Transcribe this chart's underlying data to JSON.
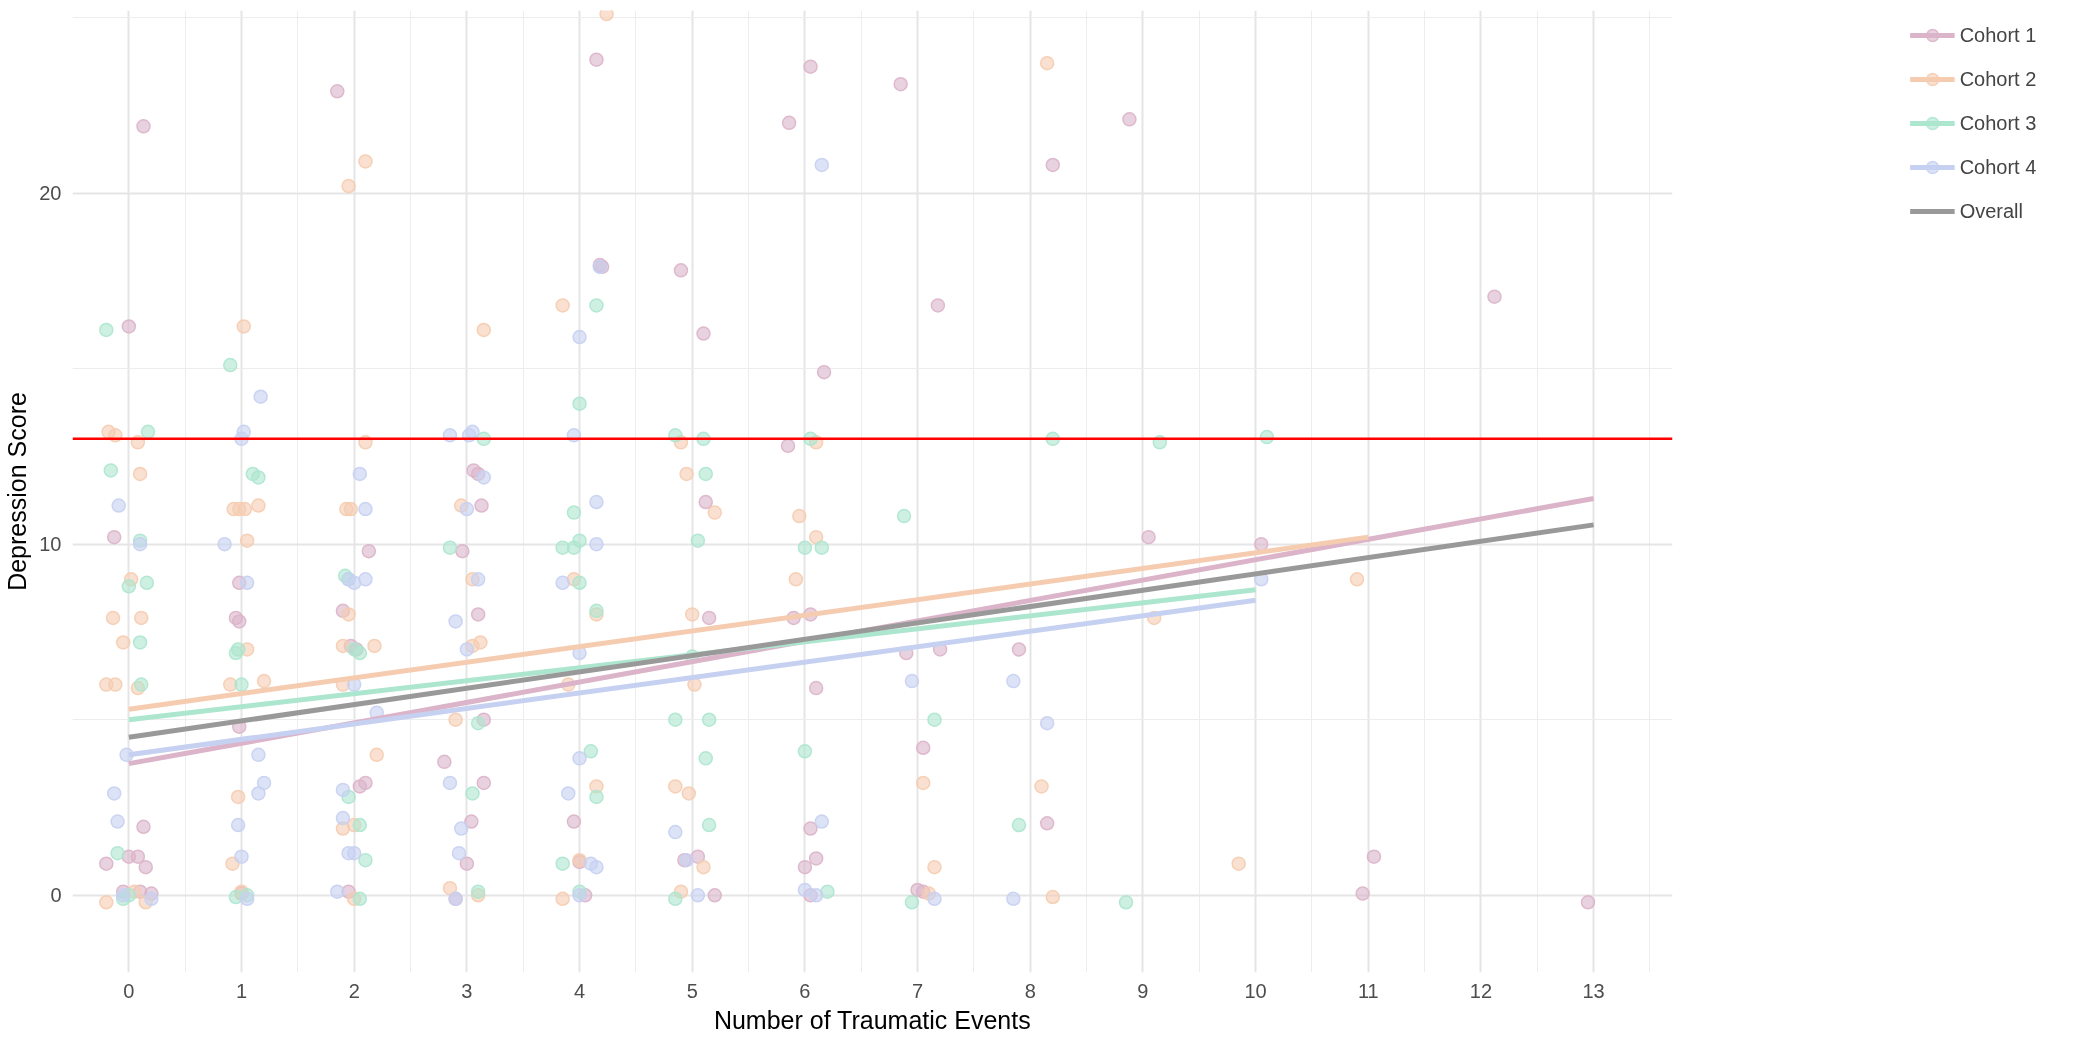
{
  "chart_data": {
    "type": "scatter",
    "xlabel": "Number of Traumatic Events",
    "ylabel": "Depression Score",
    "xlim": [
      -0.5,
      13.7
    ],
    "ylim": [
      -2.2,
      25.2
    ],
    "xticks": [
      0,
      1,
      2,
      3,
      4,
      5,
      6,
      7,
      8,
      9,
      10,
      11,
      12,
      13
    ],
    "yticks": [
      0,
      10,
      20
    ],
    "grid": true,
    "legend": "right",
    "marker": "circle",
    "ref_lines": [
      {
        "axis": "y",
        "value": 13,
        "color": "#ff0000"
      }
    ],
    "series": [
      {
        "name": "Cohort 1",
        "color": "#dbb4c9",
        "x": [
          0.13,
          0,
          -0.13,
          0.13,
          0,
          0.08,
          -0.2,
          0.15,
          -0.05,
          0.1,
          0.2,
          0.95,
          0.98,
          0.98,
          0.98,
          1.0,
          1.85,
          2.13,
          1.9,
          1.97,
          2.02,
          2.05,
          2.1,
          1.95,
          2.96,
          3.1,
          3.06,
          3.1,
          3.13,
          2.8,
          3.04,
          3.15,
          3.15,
          3.0,
          2.9,
          4.15,
          4.2,
          4.18,
          3.95,
          4.0,
          4.05,
          4.9,
          5.1,
          5.12,
          5.15,
          4.93,
          5.05,
          5.2,
          5.86,
          6.05,
          6.17,
          5.85,
          5.9,
          6.05,
          6.1,
          6.05,
          6.1,
          6.0,
          6.05,
          6.85,
          7.18,
          6.9,
          7.2,
          7.05,
          7.0,
          7.05,
          8.2,
          7.9,
          8.15,
          8.88,
          9.05,
          10.05,
          11.05,
          10.95,
          12.12,
          12.95
        ],
        "values": [
          21.9,
          16.2,
          10.2,
          1.95,
          1.1,
          1.1,
          0.9,
          0.8,
          0.1,
          0.1,
          0.05,
          7.9,
          7.8,
          8.9,
          4.8,
          0.05,
          22.9,
          9.8,
          8.1,
          7.1,
          7.0,
          3.1,
          3.2,
          0.1,
          9.8,
          8.0,
          12.1,
          12.0,
          11.1,
          3.8,
          2.1,
          3.2,
          5.0,
          0.9,
          -0.1,
          23.8,
          17.9,
          17.95,
          2.1,
          0.95,
          0.0,
          17.8,
          16.0,
          11.2,
          7.9,
          1.0,
          1.1,
          0.0,
          22.0,
          23.6,
          14.9,
          12.8,
          7.9,
          8.0,
          5.9,
          1.9,
          1.05,
          0.8,
          0.0,
          23.1,
          16.8,
          6.9,
          7.0,
          4.2,
          0.15,
          0.1,
          20.8,
          7.0,
          2.05,
          22.1,
          10.2,
          10.0,
          1.1,
          0.05,
          17.05,
          -0.2
        ]
      },
      {
        "name": "Cohort 2",
        "color": "#f5ccb0",
        "x": [
          -0.18,
          -0.12,
          0.08,
          0.1,
          0.02,
          -0.14,
          0.11,
          -0.05,
          -0.2,
          -0.12,
          0.08,
          -0.2,
          0.15,
          0.05,
          1.02,
          0.93,
          0.98,
          1.03,
          1.15,
          1.05,
          0.9,
          1.05,
          1.2,
          0.97,
          0.92,
          1.0,
          1.95,
          2.1,
          2.1,
          1.93,
          1.97,
          1.95,
          1.9,
          2.18,
          1.9,
          2.2,
          1.9,
          2.0,
          2.0,
          3.15,
          2.95,
          3.05,
          3.05,
          3.12,
          2.9,
          2.85,
          3.1,
          3.85,
          3.95,
          4.24,
          3.9,
          4.15,
          4.15,
          4.0,
          3.85,
          4.9,
          4.95,
          5.2,
          5.0,
          5.02,
          4.85,
          4.97,
          5.1,
          4.9,
          6.1,
          5.95,
          6.1,
          5.92,
          7.05,
          7.15,
          7.1,
          8.15,
          8.1,
          8.2,
          9.1,
          9.85,
          10.9
        ],
        "values": [
          13.2,
          13.1,
          12.9,
          12.0,
          9.0,
          7.9,
          7.9,
          7.2,
          6.0,
          6.0,
          5.9,
          -0.2,
          -0.2,
          0.1,
          16.2,
          11.0,
          11.0,
          11.0,
          11.1,
          10.1,
          6.0,
          7.0,
          6.1,
          2.8,
          0.9,
          0.1,
          20.2,
          20.9,
          12.9,
          11.0,
          11.0,
          8.0,
          7.1,
          7.1,
          6.0,
          4.0,
          1.9,
          2.0,
          -0.1,
          16.1,
          11.1,
          9.0,
          7.1,
          7.2,
          5.0,
          0.2,
          0.0,
          16.8,
          9.0,
          25.1,
          6.0,
          8.0,
          3.1,
          1.0,
          -0.1,
          12.9,
          12.0,
          10.9,
          8.0,
          6.0,
          3.1,
          2.9,
          0.8,
          0.1,
          12.9,
          10.8,
          10.2,
          9.0,
          3.2,
          0.8,
          0.05,
          23.7,
          3.1,
          -0.05,
          7.9,
          0.9,
          9.0
        ]
      },
      {
        "name": "Cohort 3",
        "color": "#ade6cf",
        "x": [
          -0.2,
          -0.16,
          0.17,
          0.1,
          0.0,
          0.16,
          0.1,
          0.11,
          -0.1,
          0.0,
          -0.05,
          0.9,
          1.1,
          1.15,
          0.95,
          0.97,
          1.0,
          0.95,
          1.05,
          1.92,
          1.95,
          2.0,
          2.05,
          2.05,
          2.1,
          1.95,
          2.05,
          3.15,
          2.85,
          3.1,
          3.05,
          3.1,
          4.0,
          4.15,
          3.95,
          3.85,
          3.95,
          4.0,
          4.0,
          4.15,
          4.1,
          4.15,
          3.85,
          4.0,
          4.85,
          5.1,
          5.12,
          5.05,
          5.0,
          4.85,
          5.15,
          5.12,
          5.15,
          4.85,
          6.05,
          6.0,
          6.15,
          6.0,
          6.2,
          6.88,
          7.15,
          6.95,
          8.2,
          7.9,
          9.15,
          8.85,
          10.1
        ],
        "values": [
          16.1,
          12.1,
          13.2,
          10.1,
          8.8,
          8.9,
          7.2,
          6.0,
          1.2,
          0.0,
          -0.1,
          15.1,
          12.0,
          11.9,
          6.9,
          7.0,
          6.0,
          -0.05,
          0.0,
          9.1,
          9.0,
          7.0,
          6.9,
          2.0,
          1.0,
          2.8,
          -0.1,
          13.0,
          9.9,
          4.9,
          2.9,
          0.1,
          14.0,
          16.8,
          10.9,
          9.9,
          9.9,
          10.1,
          8.9,
          8.1,
          4.1,
          2.8,
          0.9,
          0.1,
          13.1,
          13.0,
          12.0,
          10.1,
          6.8,
          5.0,
          5.0,
          3.9,
          2.0,
          -0.1,
          13.0,
          9.9,
          9.9,
          4.1,
          0.1,
          10.8,
          5.0,
          -0.2,
          13.0,
          2.0,
          12.9,
          -0.2,
          13.05
        ]
      },
      {
        "name": "Cohort 4",
        "color": "#c6d0f1",
        "x": [
          -0.09,
          0.1,
          -0.02,
          -0.13,
          -0.1,
          0.2,
          -0.05,
          1.02,
          1.0,
          1.17,
          0.85,
          1.05,
          1.15,
          1.2,
          1.15,
          0.97,
          1.0,
          1.05,
          2.05,
          2.1,
          1.95,
          2.0,
          2.1,
          2.0,
          2.2,
          1.9,
          1.9,
          2.0,
          1.95,
          1.85,
          2.85,
          3.02,
          3.05,
          3.15,
          3.0,
          3.1,
          2.9,
          3.0,
          2.85,
          2.93,
          2.95,
          2.9,
          4.0,
          4.18,
          3.95,
          4.15,
          4.15,
          3.85,
          4.0,
          4.0,
          3.9,
          4.1,
          4.15,
          4.0,
          4.85,
          4.95,
          5.05,
          6.15,
          6.15,
          6.0,
          6.1,
          6.95,
          7.15,
          7.85,
          8.15,
          7.85,
          10.05
        ],
        "values": [
          11.1,
          10.0,
          4.0,
          2.9,
          2.1,
          -0.1,
          0.0,
          13.2,
          13.0,
          14.2,
          10.0,
          8.9,
          4.0,
          3.2,
          2.9,
          2.0,
          1.1,
          -0.1,
          12.0,
          11.0,
          9.0,
          8.9,
          9.0,
          6.0,
          5.2,
          3.0,
          2.2,
          1.2,
          1.2,
          0.1,
          13.1,
          13.1,
          13.2,
          11.9,
          11.0,
          9.0,
          7.8,
          7.0,
          3.2,
          1.2,
          1.9,
          -0.1,
          15.9,
          17.9,
          13.1,
          11.2,
          10.0,
          8.9,
          6.9,
          3.9,
          2.9,
          0.9,
          0.8,
          0.0,
          1.8,
          1.0,
          0.0,
          20.8,
          2.1,
          0.15,
          0.0,
          6.1,
          -0.1,
          6.1,
          4.9,
          -0.1,
          9.0
        ]
      },
      {
        "type": "line",
        "marker": "none",
        "color": "#dbb4c9",
        "x": [
          0,
          13
        ],
        "values": [
          3.75,
          11.3
        ]
      },
      {
        "type": "line",
        "marker": "none",
        "color": "#f5ccb0",
        "x": [
          0,
          11
        ],
        "values": [
          5.3,
          10.2
        ]
      },
      {
        "type": "line",
        "marker": "none",
        "color": "#ade6cf",
        "x": [
          0,
          10
        ],
        "values": [
          5.0,
          8.7
        ]
      },
      {
        "type": "line",
        "marker": "none",
        "color": "#c6d0f1",
        "x": [
          0,
          10
        ],
        "values": [
          4.0,
          8.4
        ]
      },
      {
        "type": "line",
        "marker": "none",
        "name": "Overall",
        "color": "#999999",
        "x": [
          0,
          13
        ],
        "values": [
          4.5,
          10.55
        ]
      }
    ]
  }
}
